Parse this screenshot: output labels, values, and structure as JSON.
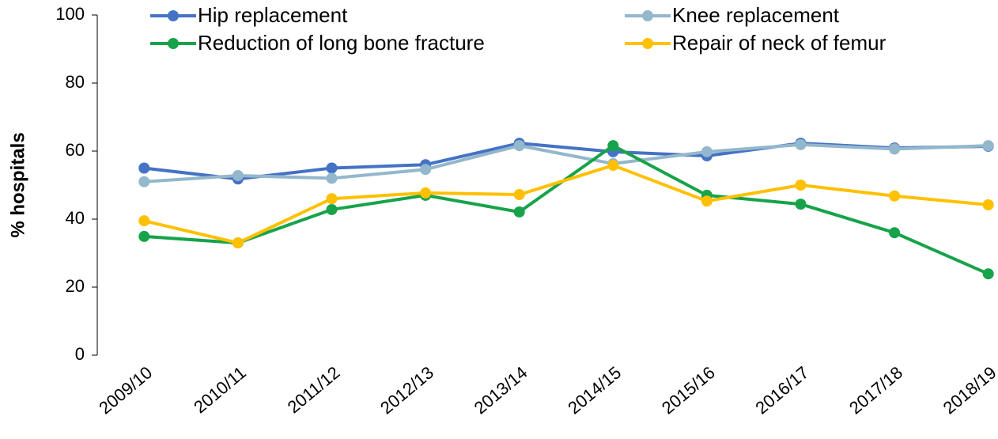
{
  "chart_data": {
    "type": "line",
    "y_label": "% hospitals",
    "categories": [
      "2009/10",
      "2010/11",
      "2011/12",
      "2012/13",
      "2013/14",
      "2014/15",
      "2015/16",
      "2016/17",
      "2017/18",
      "2018/19"
    ],
    "series": [
      {
        "name": "Hip replacement",
        "color": "#4472c4",
        "values": [
          55,
          51.8,
          55,
          56,
          62.3,
          59.8,
          58.6,
          62.3,
          60.9,
          61.4
        ]
      },
      {
        "name": "Knee replacement",
        "color": "#93b7cc",
        "values": [
          51,
          52.8,
          52,
          54.6,
          61.6,
          56.3,
          59.8,
          61.9,
          60.6,
          61.6
        ]
      },
      {
        "name": "Reduction of long bone fracture",
        "color": "#17a34a",
        "values": [
          34.9,
          33,
          42.8,
          47,
          42.1,
          61.6,
          47,
          44.4,
          36,
          23.9
        ]
      },
      {
        "name": "Repair of neck of femur",
        "color": "#ffc000",
        "values": [
          39.5,
          33,
          46,
          47.7,
          47.2,
          55.8,
          45.3,
          50,
          46.8,
          44.2
        ]
      }
    ],
    "ylim": [
      0,
      100
    ],
    "yticks": [
      0,
      20,
      40,
      60,
      80,
      100
    ],
    "grid": false,
    "legend": "top"
  }
}
